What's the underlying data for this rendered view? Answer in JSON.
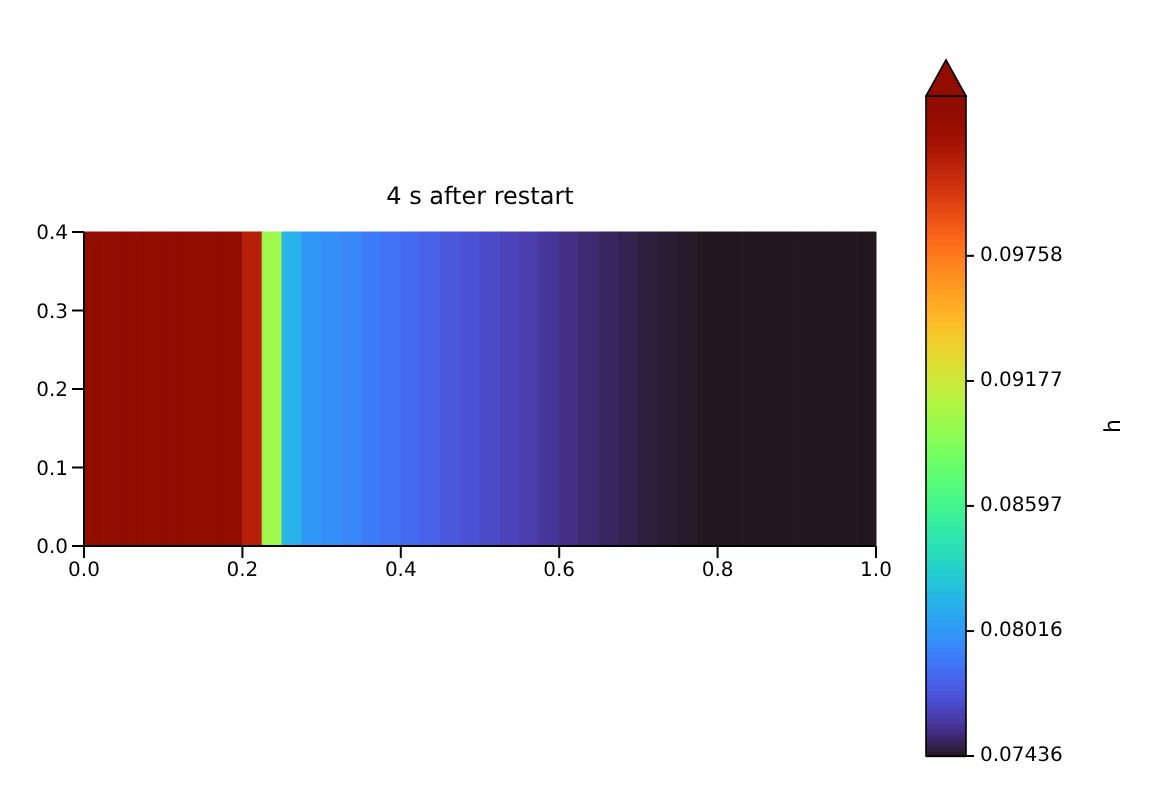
{
  "chart_data": {
    "type": "heatmap",
    "title": "4 s after restart",
    "clabel": "h",
    "cells": [
      [
        0.105,
        0.105,
        0.105,
        0.105,
        0.105,
        0.105,
        0.105,
        0.105,
        0.102,
        0.09,
        0.0815,
        0.0802,
        0.0798,
        0.0794,
        0.079,
        0.0786,
        0.0782,
        0.0778,
        0.0774,
        0.0771,
        0.0768,
        0.0765,
        0.0762,
        0.0759,
        0.0756,
        0.0753,
        0.0751,
        0.0749,
        0.0747,
        0.0746,
        0.0745,
        0.0744,
        0.0744,
        0.0744,
        0.0744,
        0.0744,
        0.0744,
        0.0744,
        0.0744,
        0.0744
      ]
    ],
    "xlim": [
      0,
      1
    ],
    "xticks": [
      {
        "value": 0,
        "label": "0.0"
      },
      {
        "value": 0.2,
        "label": "0.2"
      },
      {
        "value": 0.4,
        "label": "0.4"
      },
      {
        "value": 0.6,
        "label": "0.6"
      },
      {
        "value": 0.8,
        "label": "0.8"
      },
      {
        "value": 1,
        "label": "1.0"
      }
    ],
    "ylim": [
      0,
      0.4
    ],
    "yticks": [
      {
        "value": 0,
        "label": "0.0"
      },
      {
        "value": 0.1,
        "label": "0.1"
      },
      {
        "value": 0.2,
        "label": "0.2"
      },
      {
        "value": 0.3,
        "label": "0.3"
      },
      {
        "value": 0.4,
        "label": "0.4"
      }
    ],
    "clim": [
      0.07436,
      0.105
    ],
    "cticks": [
      0.07436,
      0.08016,
      0.08597,
      0.09177,
      0.09758
    ]
  }
}
